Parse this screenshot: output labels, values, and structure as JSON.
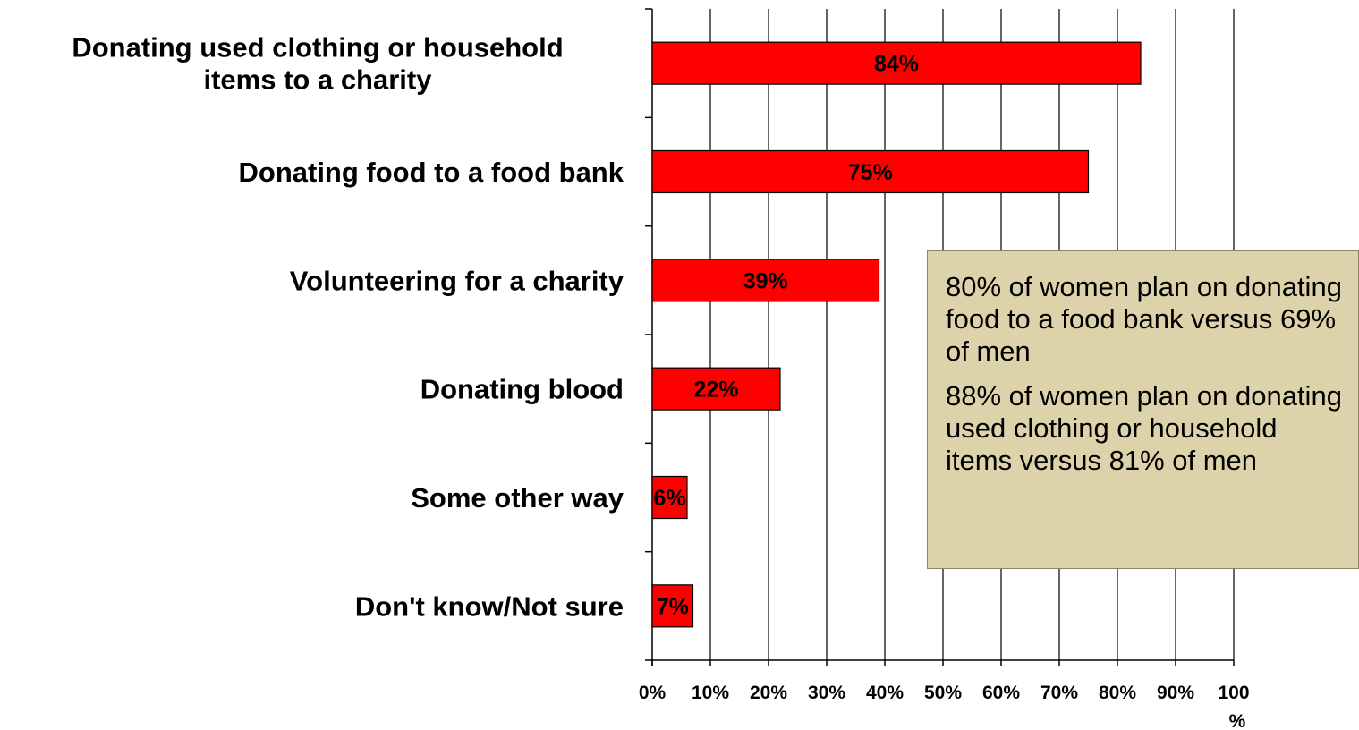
{
  "chart_data": {
    "type": "bar",
    "orientation": "horizontal",
    "categories": [
      [
        "Donating used clothing or household",
        "items to a charity"
      ],
      [
        "Donating food to a food bank"
      ],
      [
        "Volunteering for a charity"
      ],
      [
        "Donating blood"
      ],
      [
        "Some other way"
      ],
      [
        "Don't know/Not sure"
      ]
    ],
    "values": [
      84,
      75,
      39,
      22,
      6,
      7
    ],
    "value_labels": [
      "84%",
      "75%",
      "39%",
      "22%",
      "6%",
      "7%"
    ],
    "xlim": [
      0,
      100
    ],
    "x_ticks": [
      "0%",
      "10%",
      "20%",
      "30%",
      "40%",
      "50%",
      "60%",
      "70%",
      "80%",
      "90%",
      "100"
    ],
    "x_tick_overflow": "%",
    "grid": "vertical",
    "bar_color": "#ff0000",
    "bar_edge_color": "#000000",
    "title": "",
    "xlabel": "",
    "ylabel": ""
  },
  "callout": {
    "paragraphs": [
      "80% of women plan on donating food to a food bank versus 69% of men",
      "88% of women plan on donating used clothing or household items versus 81% of men"
    ],
    "background": "#ddd3ab"
  }
}
